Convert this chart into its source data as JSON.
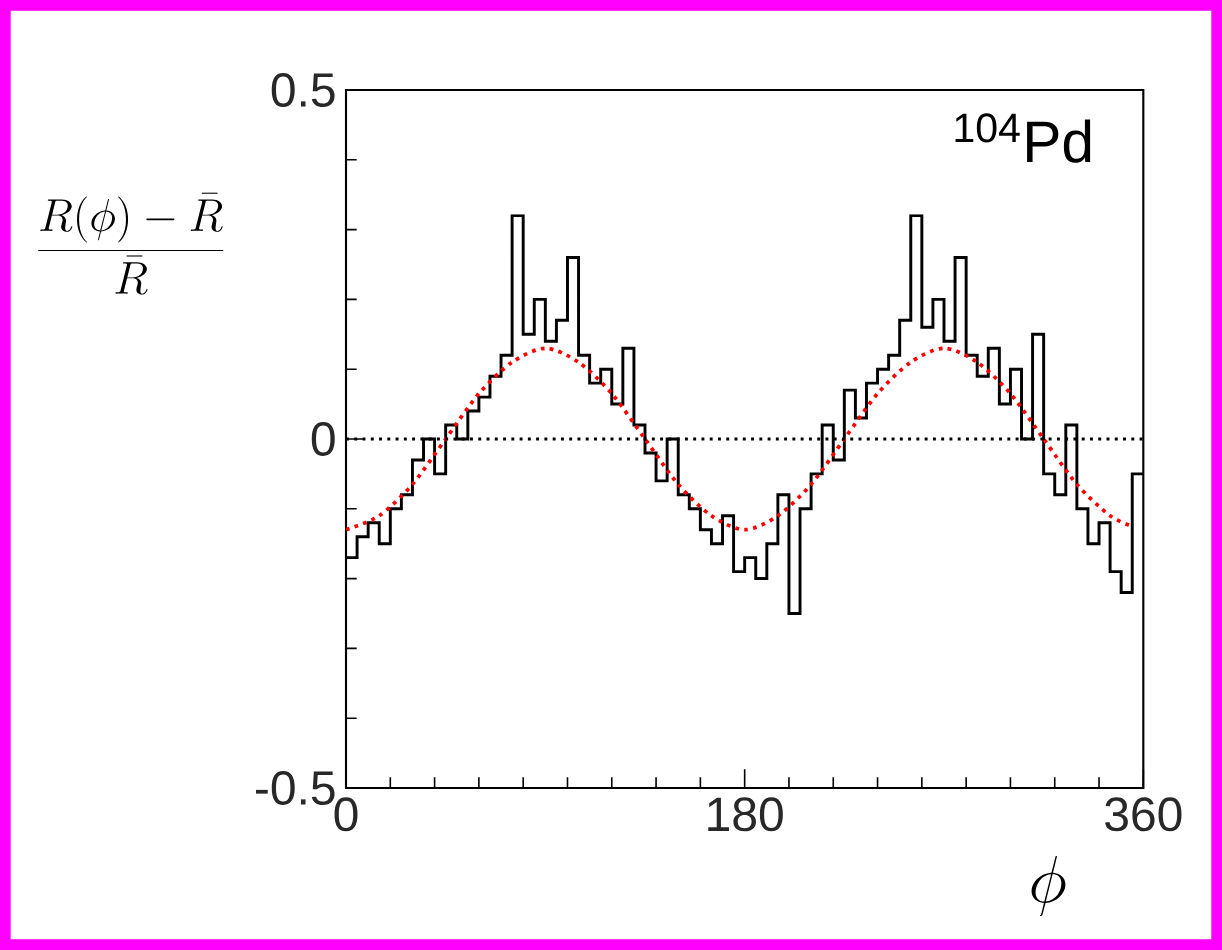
{
  "chart_data": {
    "type": "histogram",
    "xlabel": "\\phi",
    "ylabel": "\\frac{R(\\phi)-\\bar{R}}{\\bar{R}}",
    "annotations": [
      "$^{104}$Pd"
    ],
    "xlim": [
      0,
      360
    ],
    "xticks": [
      0,
      180,
      360
    ],
    "ylim": [
      -0.5,
      0.5
    ],
    "yticks": [
      -0.5,
      0,
      0.5
    ],
    "ref_lines": [
      {
        "axis": "y",
        "value": 0,
        "color": "#000000",
        "line_style": "dotted"
      }
    ],
    "series": [
      {
        "color": "#000000",
        "bins": [
          0,
          5,
          10,
          15,
          20,
          25,
          30,
          35,
          40,
          45,
          50,
          55,
          60,
          65,
          70,
          75,
          80,
          85,
          90,
          95,
          100,
          105,
          110,
          115,
          120,
          125,
          130,
          135,
          140,
          145,
          150,
          155,
          160,
          165,
          170,
          175,
          180,
          185,
          190,
          195,
          200,
          205,
          210,
          215,
          220,
          225,
          230,
          235,
          240,
          245,
          250,
          255,
          260,
          265,
          270,
          275,
          280,
          285,
          290,
          295,
          300,
          305,
          310,
          315,
          320,
          325,
          330,
          335,
          340,
          345,
          350,
          355,
          360
        ],
        "values": [
          -0.17,
          -0.14,
          -0.12,
          -0.15,
          -0.1,
          -0.08,
          -0.03,
          0.0,
          -0.05,
          0.02,
          0.0,
          0.04,
          0.06,
          0.09,
          0.12,
          0.32,
          0.15,
          0.2,
          0.14,
          0.17,
          0.26,
          0.12,
          0.08,
          0.1,
          0.05,
          0.13,
          0.02,
          -0.02,
          -0.06,
          0.0,
          -0.08,
          -0.1,
          -0.13,
          -0.15,
          -0.11,
          -0.19,
          -0.17,
          -0.2,
          -0.15,
          -0.08,
          -0.25,
          -0.1,
          -0.05,
          0.02,
          -0.03,
          0.07,
          0.03,
          0.08,
          0.1,
          0.12,
          0.17,
          0.32,
          0.16,
          0.2,
          0.14,
          0.26,
          0.12,
          0.09,
          0.13,
          0.05,
          0.1,
          0.0,
          0.15,
          -0.05,
          -0.08,
          0.02,
          -0.1,
          -0.15,
          -0.12,
          -0.19,
          -0.22,
          -0.05
        ]
      },
      {
        "type": "line",
        "color": "#ff0000",
        "line_style": "dotted",
        "x": [
          0,
          15,
          30,
          45,
          60,
          75,
          90,
          105,
          120,
          135,
          150,
          165,
          180,
          195,
          210,
          225,
          240,
          255,
          270,
          285,
          300,
          315,
          330,
          345,
          355
        ],
        "values": [
          -0.13,
          -0.11,
          -0.065,
          0.0,
          0.065,
          0.11,
          0.13,
          0.11,
          0.065,
          0.0,
          -0.065,
          -0.11,
          -0.13,
          -0.11,
          -0.065,
          0.0,
          0.065,
          0.11,
          0.13,
          0.11,
          0.065,
          0.0,
          -0.065,
          -0.11,
          -0.125
        ]
      }
    ]
  }
}
